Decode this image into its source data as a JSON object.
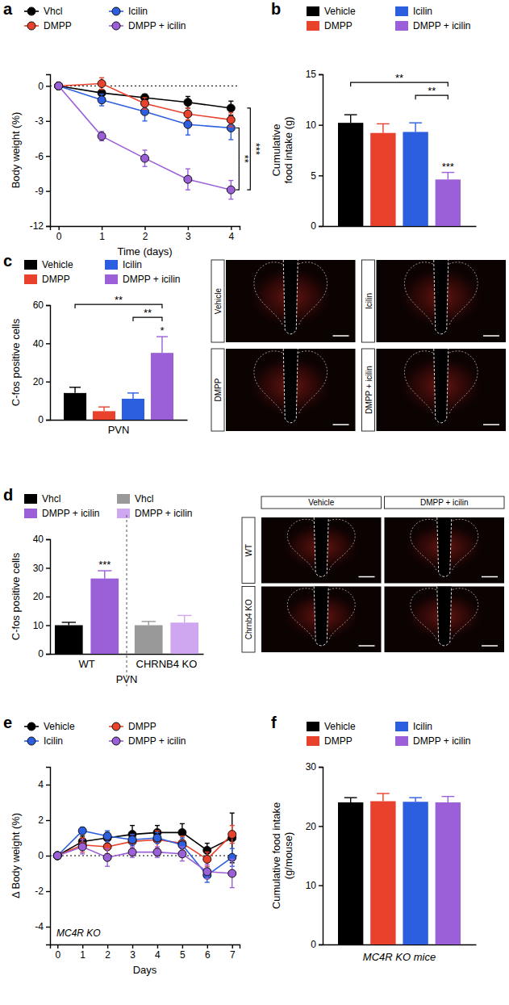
{
  "chart_data": [
    {
      "type": "line",
      "title": "a",
      "x_label": "Time (days)",
      "y_label": "Body weight (%)",
      "x": [
        0,
        1,
        2,
        3,
        4
      ],
      "xlim": [
        -0.2,
        4.2
      ],
      "xticks": [
        0,
        1,
        2,
        3,
        4
      ],
      "ylim": [
        -12,
        1
      ],
      "yticks": [
        -12,
        -9,
        -6,
        -3,
        0
      ],
      "marker": "circle",
      "series": [
        {
          "name": "Vhcl",
          "color": "#000000",
          "values": [
            0,
            -0.6,
            -1.0,
            -1.4,
            -1.9
          ],
          "errors": [
            0,
            0.3,
            0.3,
            0.5,
            0.6
          ]
        },
        {
          "name": "Icilin",
          "color": "#2c5fe0",
          "values": [
            0,
            -1.2,
            -2.2,
            -3.3,
            -3.6
          ],
          "errors": [
            0,
            0.5,
            0.8,
            0.9,
            1.0
          ]
        },
        {
          "name": "DMPP",
          "color": "#e8412c",
          "values": [
            0,
            0.2,
            -1.5,
            -2.4,
            -2.9
          ],
          "errors": [
            0,
            0.5,
            0.5,
            0.5,
            0.6
          ]
        },
        {
          "name": "DMPP + icilin",
          "color": "#9b5fd8",
          "values": [
            0,
            -4.3,
            -6.2,
            -8.0,
            -8.9
          ],
          "errors": [
            0,
            0.4,
            0.7,
            0.9,
            0.8
          ]
        }
      ],
      "annotations": [
        {
          "text": "**",
          "from": 1,
          "to": 3
        },
        {
          "text": "***",
          "from": 0,
          "to": 3
        }
      ]
    },
    {
      "type": "bar",
      "title": "b",
      "y_label": "Cumulative\nfood intake (g)",
      "categories": [
        null
      ],
      "ylim": [
        0,
        15
      ],
      "yticks": [
        0,
        5,
        10,
        15
      ],
      "series": [
        {
          "name": "Vehicle",
          "color": "#000000",
          "values": [
            10.2
          ],
          "errors": [
            0.8
          ]
        },
        {
          "name": "DMPP",
          "color": "#e8412c",
          "values": [
            9.2
          ],
          "errors": [
            0.9
          ]
        },
        {
          "name": "Icilin",
          "color": "#2c5fe0",
          "values": [
            9.3
          ],
          "errors": [
            0.9
          ]
        },
        {
          "name": "DMPP + icilin",
          "color": "#9b5fd8",
          "values": [
            4.6
          ],
          "errors": [
            0.7
          ]
        }
      ],
      "annotations": [
        {
          "text": "**",
          "from": 0,
          "to": 3
        },
        {
          "text": "**",
          "from": 2,
          "to": 3
        },
        {
          "text": "***",
          "at": 3
        }
      ]
    },
    {
      "type": "bar",
      "title": "c",
      "y_label": "C-fos positive cells",
      "categories": [
        "PVN"
      ],
      "ylim": [
        0,
        60
      ],
      "yticks": [
        0,
        20,
        40,
        60
      ],
      "series": [
        {
          "name": "Vehicle",
          "color": "#000000",
          "values": [
            14
          ],
          "errors": [
            3
          ]
        },
        {
          "name": "DMPP",
          "color": "#e8412c",
          "values": [
            4.5
          ],
          "errors": [
            2.2
          ]
        },
        {
          "name": "Icilin",
          "color": "#2c5fe0",
          "values": [
            11
          ],
          "errors": [
            3
          ]
        },
        {
          "name": "DMPP + icilin",
          "color": "#9b5fd8",
          "values": [
            35
          ],
          "errors": [
            8.5
          ]
        }
      ],
      "annotations": [
        {
          "text": "**",
          "from": 0,
          "to": 3
        },
        {
          "text": "**",
          "from": 2,
          "to": 3
        },
        {
          "text": "*",
          "at": 3
        }
      ],
      "image_labels": [
        "Vehicle",
        "Icilin",
        "DMPP",
        "DMPP + icilin"
      ]
    },
    {
      "type": "bar",
      "title": "d",
      "x_label": "PVN",
      "y_label": "C-fos positive cells",
      "categories": [
        "WT",
        "CHRNB4 KO"
      ],
      "ylim": [
        0,
        40
      ],
      "yticks": [
        0,
        10,
        20,
        30,
        40
      ],
      "series": [
        {
          "name": "Vhcl",
          "color": "#000000",
          "values": [
            10,
            null
          ],
          "errors": [
            1,
            null
          ]
        },
        {
          "name": "DMPP + icilin",
          "color": "#9b5fd8",
          "values": [
            26.3,
            null
          ],
          "errors": [
            2.7,
            null
          ]
        },
        {
          "name": "Vhcl",
          "color": "#999999",
          "values": [
            null,
            10
          ],
          "errors": [
            null,
            1.3
          ]
        },
        {
          "name": "DMPP + icilin",
          "color": "#cfa6f0",
          "values": [
            null,
            10.9
          ],
          "errors": [
            null,
            2.5
          ]
        }
      ],
      "annotations": [
        {
          "text": "***",
          "at": 1
        }
      ],
      "image_columns": [
        "Vehicle",
        "DMPP + icilin"
      ],
      "image_rows": [
        "WT",
        "Chrnb4 KO"
      ]
    },
    {
      "type": "line",
      "title": "e",
      "x_label": "Days",
      "y_label": "Δ Body weight (%)",
      "x": [
        0,
        1,
        2,
        3,
        4,
        5,
        6,
        7
      ],
      "xlim": [
        -0.3,
        7.3
      ],
      "xticks": [
        0,
        1,
        2,
        3,
        4,
        5,
        6,
        7
      ],
      "ylim": [
        -5,
        5
      ],
      "yticks": [
        -4,
        -2,
        0,
        2,
        4
      ],
      "marker": "circle",
      "series": [
        {
          "name": "Vehicle",
          "color": "#000000",
          "values": [
            0,
            0.8,
            1.0,
            1.2,
            1.3,
            1.3,
            0.3,
            1.0
          ],
          "errors": [
            0,
            0.3,
            0.3,
            0.5,
            0.4,
            0.5,
            0.4,
            1.4
          ]
        },
        {
          "name": "DMPP",
          "color": "#e8412c",
          "values": [
            0,
            0.6,
            0.5,
            0.8,
            0.9,
            0.7,
            -0.2,
            1.2
          ],
          "errors": [
            0,
            0.4,
            0.4,
            0.4,
            0.5,
            0.4,
            0.4,
            0.5
          ]
        },
        {
          "name": "Icilin",
          "color": "#2c5fe0",
          "values": [
            0,
            1.4,
            1.1,
            0.9,
            1.0,
            0.6,
            -1.1,
            -0.1
          ],
          "errors": [
            0,
            0.2,
            0.3,
            0.3,
            0.3,
            0.4,
            0.4,
            0.5
          ]
        },
        {
          "name": "DMPP + icilin",
          "color": "#9b5fd8",
          "values": [
            0,
            0.5,
            -0.1,
            0.2,
            0.2,
            0.1,
            -0.9,
            -1.0
          ],
          "errors": [
            0,
            0.4,
            0.5,
            0.3,
            0.3,
            0.4,
            0.4,
            0.8
          ]
        }
      ],
      "annotations": [
        {
          "text": "MC4R KO"
        }
      ]
    },
    {
      "type": "bar",
      "title": "f",
      "x_label": "MC4R KO mice",
      "y_label": "Cumulative food intake\n(g/mouse)",
      "categories": [
        null
      ],
      "ylim": [
        0,
        30
      ],
      "yticks": [
        0,
        10,
        20,
        30
      ],
      "series": [
        {
          "name": "Vehicle",
          "color": "#000000",
          "values": [
            24.0
          ],
          "errors": [
            0.8
          ]
        },
        {
          "name": "DMPP",
          "color": "#e8412c",
          "values": [
            24.2
          ],
          "errors": [
            1.3
          ]
        },
        {
          "name": "Icilin",
          "color": "#2c5fe0",
          "values": [
            24.1
          ],
          "errors": [
            0.7
          ]
        },
        {
          "name": "DMPP + icilin",
          "color": "#9b5fd8",
          "values": [
            24.0
          ],
          "errors": [
            1.0
          ]
        }
      ]
    }
  ]
}
